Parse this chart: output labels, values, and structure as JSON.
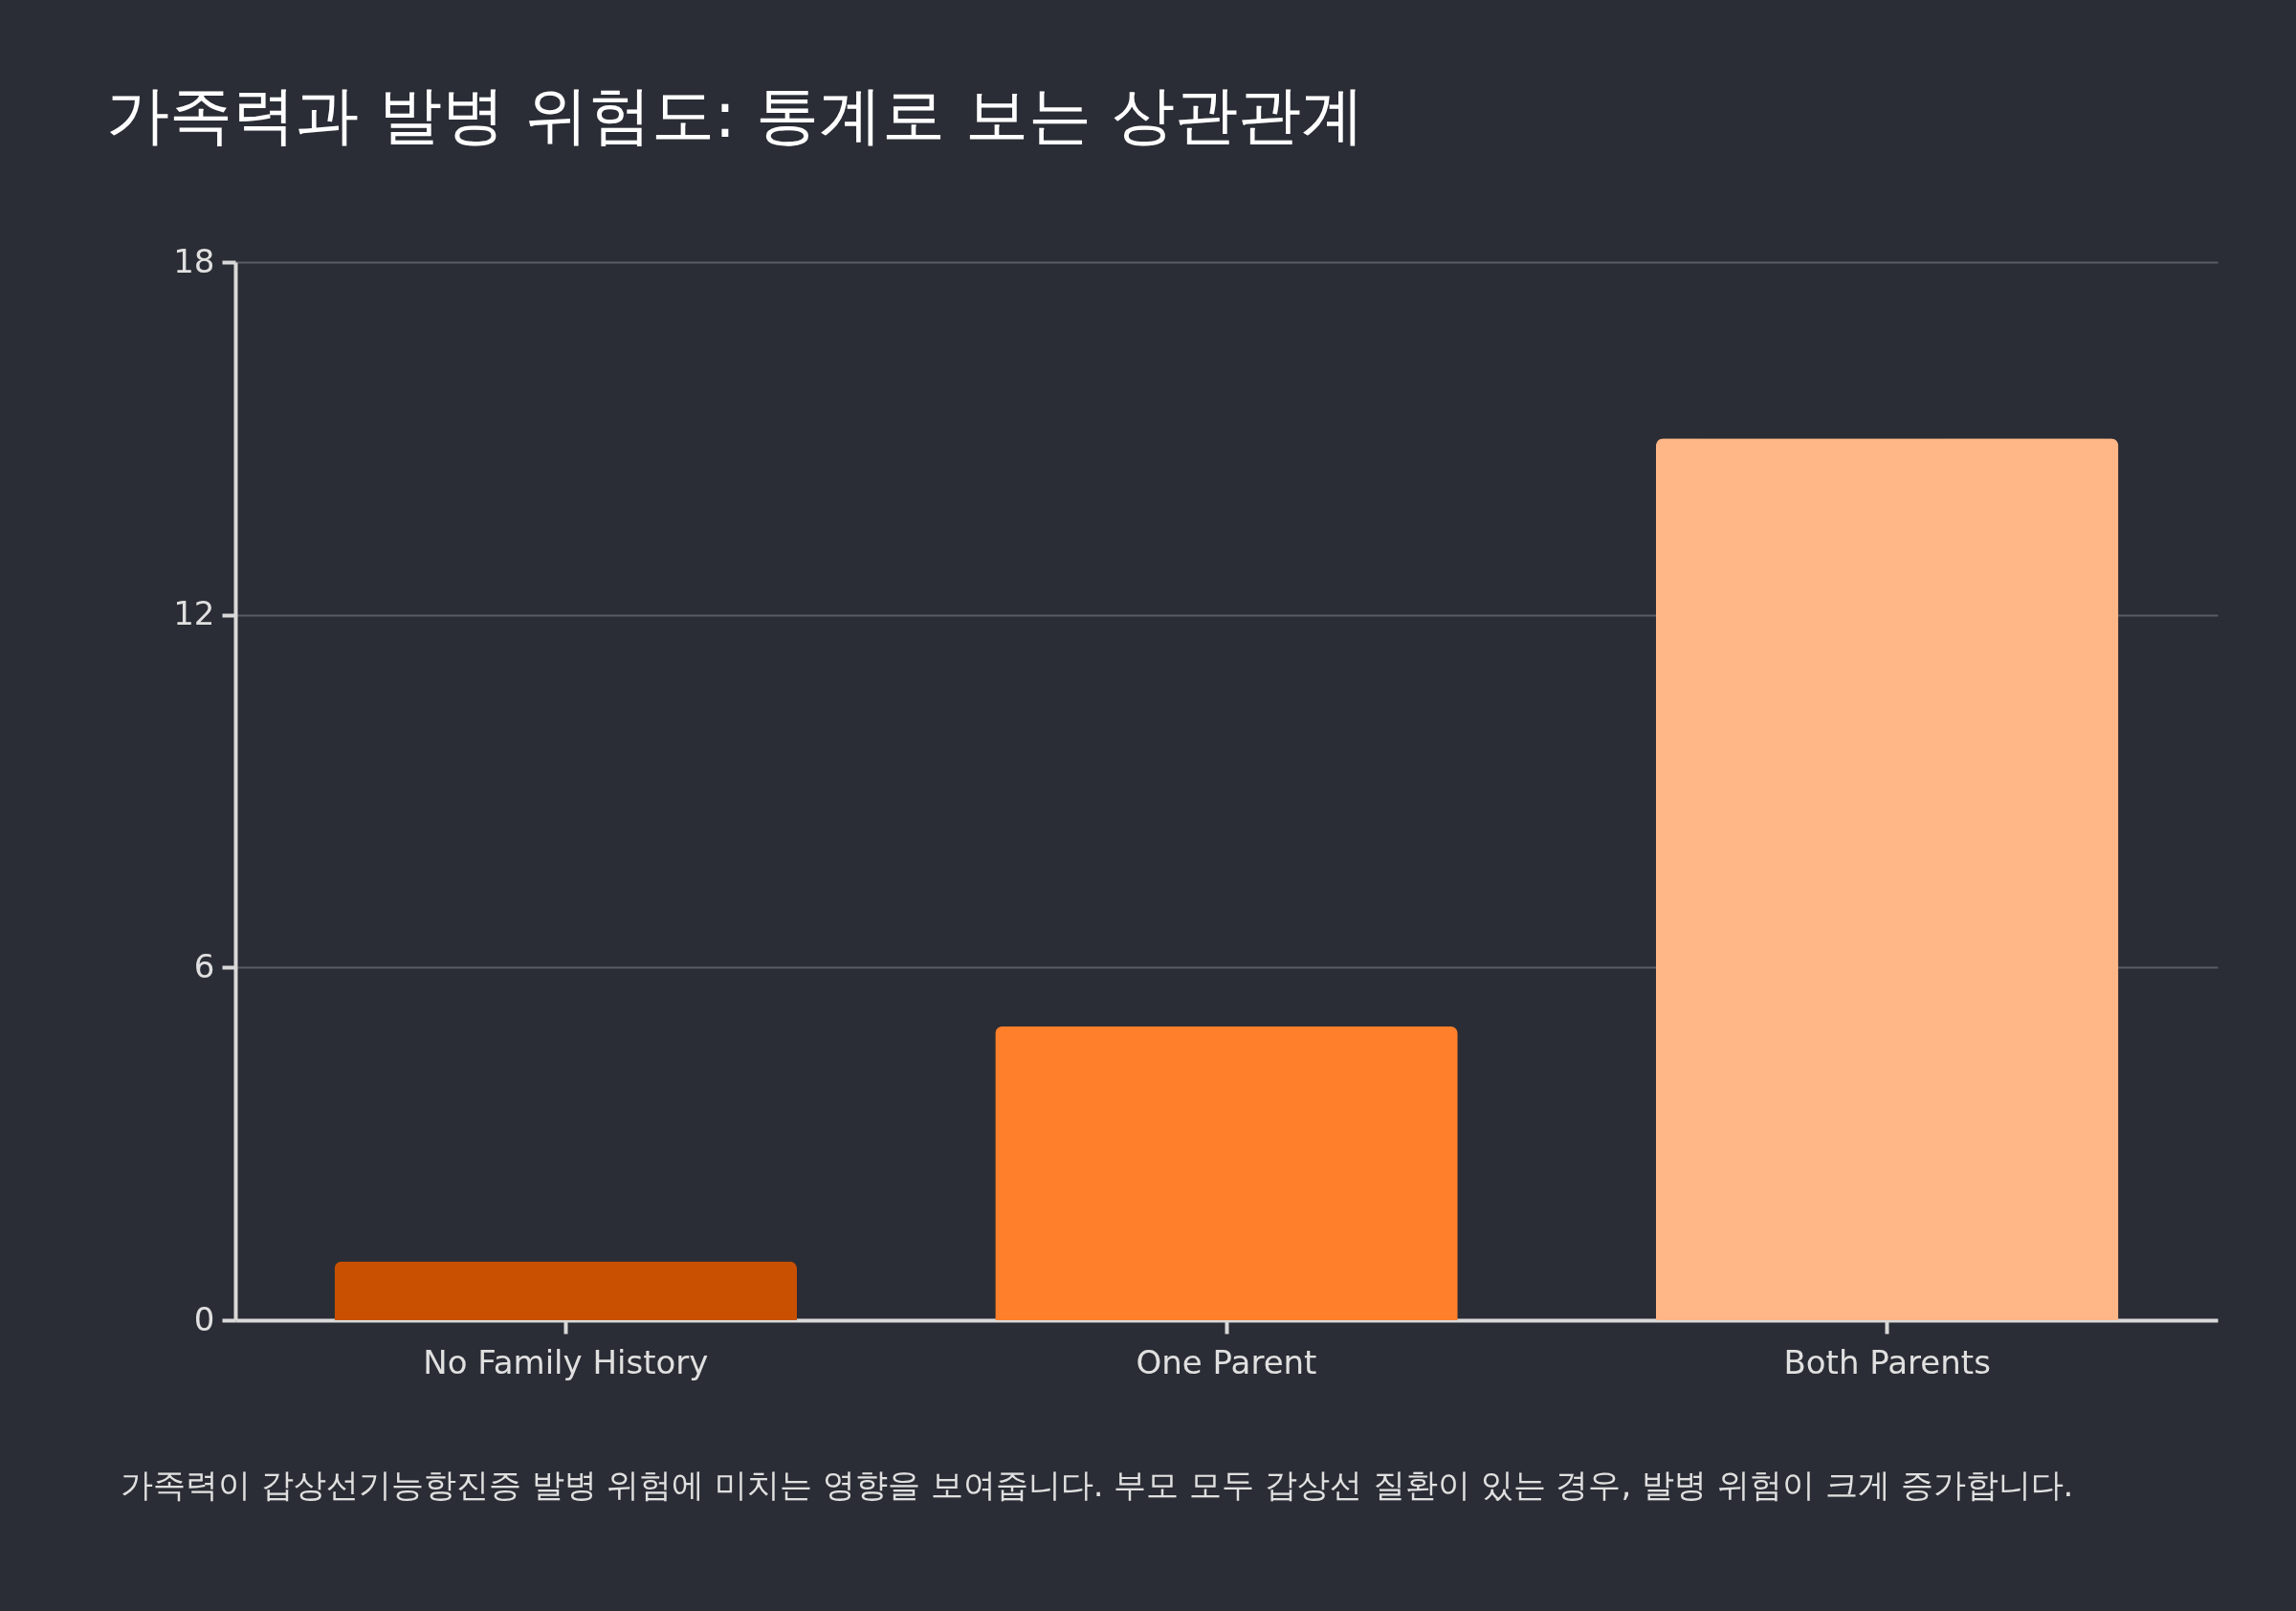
{
  "chart_data": {
    "type": "bar",
    "title": "가족력과 발병 위험도: 통계로 보는 상관관계",
    "categories": [
      "No Family History",
      "One Parent",
      "Both Parents"
    ],
    "values": [
      1,
      5,
      15
    ],
    "colors": [
      "#c85000",
      "#ff7f2a",
      "#ffb787"
    ],
    "ylim": [
      0,
      18
    ],
    "yticks": [
      0,
      6,
      12,
      18
    ],
    "grid": "y",
    "annotations": [
      "가족력이 갑상선기능항진증 발병 위험에 미치는 영향을 보여줍니다. 부모 모두 갑상선 질환이 있는 경우, 발병 위험이 크게 증가합니다."
    ]
  }
}
